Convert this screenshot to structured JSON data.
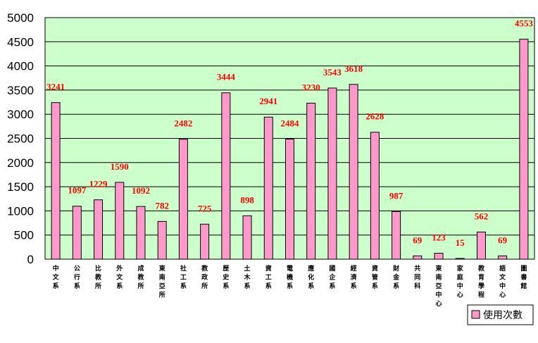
{
  "colors": {
    "plot_bg": "#ccffcc",
    "bar_fill": "#ff99cc",
    "bar_stroke": "#000000",
    "label_color": "#ff0000",
    "grid": "#000000"
  },
  "chart_data": {
    "type": "bar",
    "title": "",
    "xlabel": "",
    "ylabel": "",
    "ylim": [
      0,
      5000
    ],
    "yticks": [
      "0",
      "500",
      "1000",
      "1500",
      "2000",
      "2500",
      "3000",
      "3500",
      "4000",
      "4500",
      "5000"
    ],
    "grid": true,
    "legend_position": "bottom-right",
    "categories": [
      "中文系",
      "公行系",
      "比教所",
      "外文系",
      "成教所",
      "東南亞所",
      "社工系",
      "教政所",
      "歷史系",
      "土木系",
      "資工系",
      "電機系",
      "應化系",
      "國企系",
      "經濟系",
      "資管系",
      "財金系",
      "共同科",
      "東南亞中心",
      "家庭中心",
      "教育學程",
      "語文中心",
      "圖書館"
    ],
    "series": [
      {
        "name": "使用次數",
        "values": [
          3241,
          1097,
          1229,
          1590,
          1092,
          782,
          2482,
          725,
          3444,
          898,
          2941,
          2484,
          3230,
          3543,
          3618,
          2628,
          987,
          69,
          123,
          15,
          562,
          69,
          4553
        ],
        "labels": [
          "3241",
          "1097",
          "1229",
          "1590",
          "1092",
          "782",
          "2482",
          "725",
          "3444",
          "898",
          "2941",
          "2484",
          "3230",
          "3543",
          "3618",
          "2628",
          "987",
          "69",
          "123",
          "15",
          "562",
          "69",
          "4553"
        ]
      }
    ]
  }
}
